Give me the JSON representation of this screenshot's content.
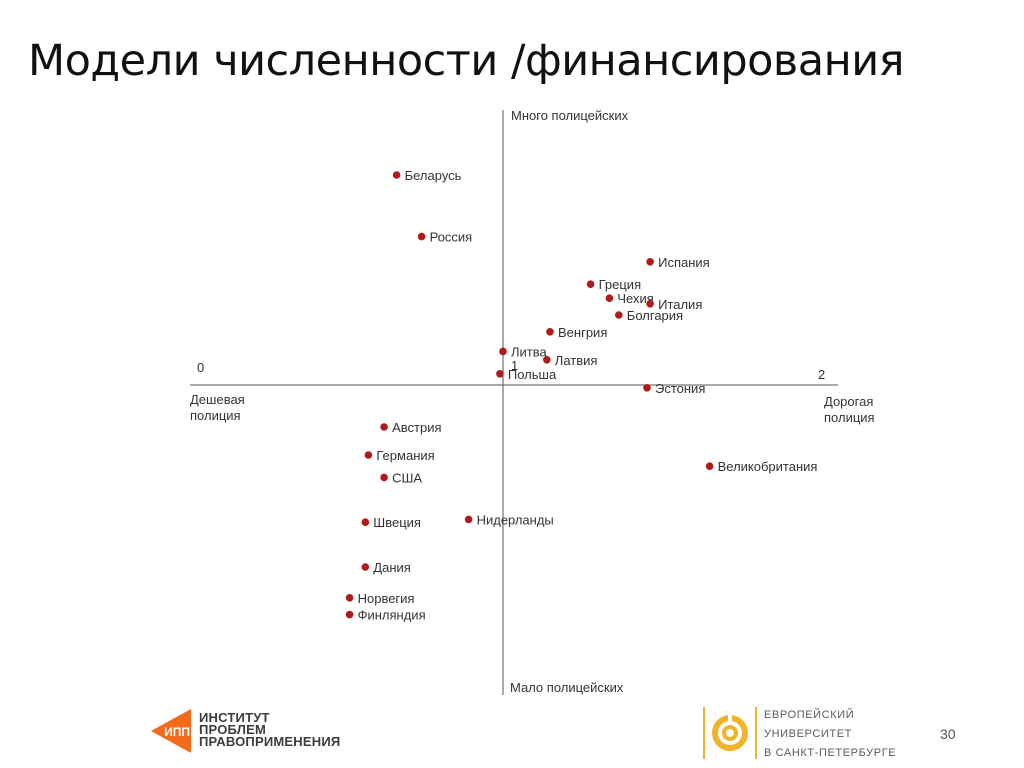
{
  "slide": {
    "title": "Модели численности /финансирования",
    "page_number": "30"
  },
  "chart_data": {
    "type": "scatter",
    "title": "",
    "axis_labels": {
      "top": "Много полицейских",
      "bottom": "Мало полицейских",
      "left": [
        "Дешевая",
        "полиция"
      ],
      "right": [
        "Дорогая",
        "полиция"
      ],
      "x_start": "0",
      "x_end": "2",
      "center": "1"
    },
    "xlim": [
      0,
      2
    ],
    "ylim": [
      -1,
      1
    ],
    "grid": false,
    "points": [
      {
        "name": "Беларусь",
        "x": 0.66,
        "y": 0.75
      },
      {
        "name": "Россия",
        "x": 0.74,
        "y": 0.53
      },
      {
        "name": "Испания",
        "x": 1.47,
        "y": 0.44
      },
      {
        "name": "Греция",
        "x": 1.28,
        "y": 0.36
      },
      {
        "name": "Чехия",
        "x": 1.34,
        "y": 0.31
      },
      {
        "name": "Италия",
        "x": 1.47,
        "y": 0.29
      },
      {
        "name": "Болгария",
        "x": 1.37,
        "y": 0.25
      },
      {
        "name": "Венгрия",
        "x": 1.15,
        "y": 0.19
      },
      {
        "name": "Литва",
        "x": 1.0,
        "y": 0.12
      },
      {
        "name": "Латвия",
        "x": 1.14,
        "y": 0.09
      },
      {
        "name": "Польша",
        "x": 0.99,
        "y": 0.04
      },
      {
        "name": "Эстония",
        "x": 1.46,
        "y": -0.01
      },
      {
        "name": "Австрия",
        "x": 0.62,
        "y": -0.15
      },
      {
        "name": "Германия",
        "x": 0.57,
        "y": -0.25
      },
      {
        "name": "США",
        "x": 0.62,
        "y": -0.33
      },
      {
        "name": "Великобритания",
        "x": 1.66,
        "y": -0.29
      },
      {
        "name": "Швеция",
        "x": 0.56,
        "y": -0.49
      },
      {
        "name": "Нидерланды",
        "x": 0.89,
        "y": -0.48
      },
      {
        "name": "Дания",
        "x": 0.56,
        "y": -0.65
      },
      {
        "name": "Норвегия",
        "x": 0.51,
        "y": -0.76
      },
      {
        "name": "Финляндия",
        "x": 0.51,
        "y": -0.82
      }
    ],
    "point_color": "#b11a1a"
  },
  "footer": {
    "ipp_logo_text": "ИПП",
    "ipp_name": [
      "ИНСТИТУТ",
      "ПРОБЛЕМ",
      "ПРАВОПРИМЕНЕНИЯ"
    ],
    "eu_name": [
      "ЕВРОПЕЙСКИЙ",
      "УНИВЕРСИТЕТ",
      "В САНКТ-ПЕТЕРБУРГЕ"
    ],
    "ipp_color": "#f26a1b",
    "eu_color": "#f0b32b"
  }
}
